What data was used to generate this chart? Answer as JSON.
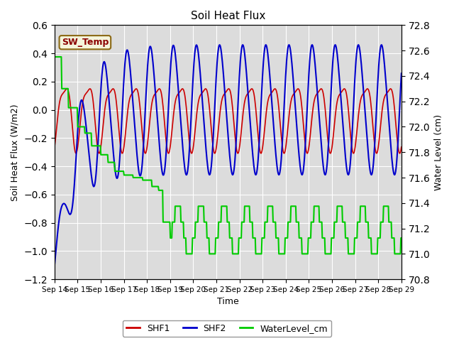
{
  "title": "Soil Heat Flux",
  "ylabel_left": "Soil Heat Flux (W/m2)",
  "ylabel_right": "Water Level (cm)",
  "xlabel": "Time",
  "ylim_left": [
    -1.2,
    0.6
  ],
  "ylim_right": [
    70.8,
    72.8
  ],
  "background_color": "#ffffff",
  "plot_bg_color": "#dcdcdc",
  "grid_color": "#ffffff",
  "annotation_text": "SW_Temp",
  "annotation_color": "#8b0000",
  "annotation_bg": "#f5f5dc",
  "annotation_border": "#8b6914",
  "x_ticks": [
    "Sep 14",
    "Sep 15",
    "Sep 16",
    "Sep 17",
    "Sep 18",
    "Sep 19",
    "Sep 20",
    "Sep 21",
    "Sep 22",
    "Sep 23",
    "Sep 24",
    "Sep 25",
    "Sep 26",
    "Sep 27",
    "Sep 28",
    "Sep 29"
  ],
  "shf1_color": "#cc0000",
  "shf2_color": "#0000cc",
  "water_color": "#00cc00",
  "legend_entries": [
    "SHF1",
    "SHF2",
    "WaterLevel_cm"
  ]
}
